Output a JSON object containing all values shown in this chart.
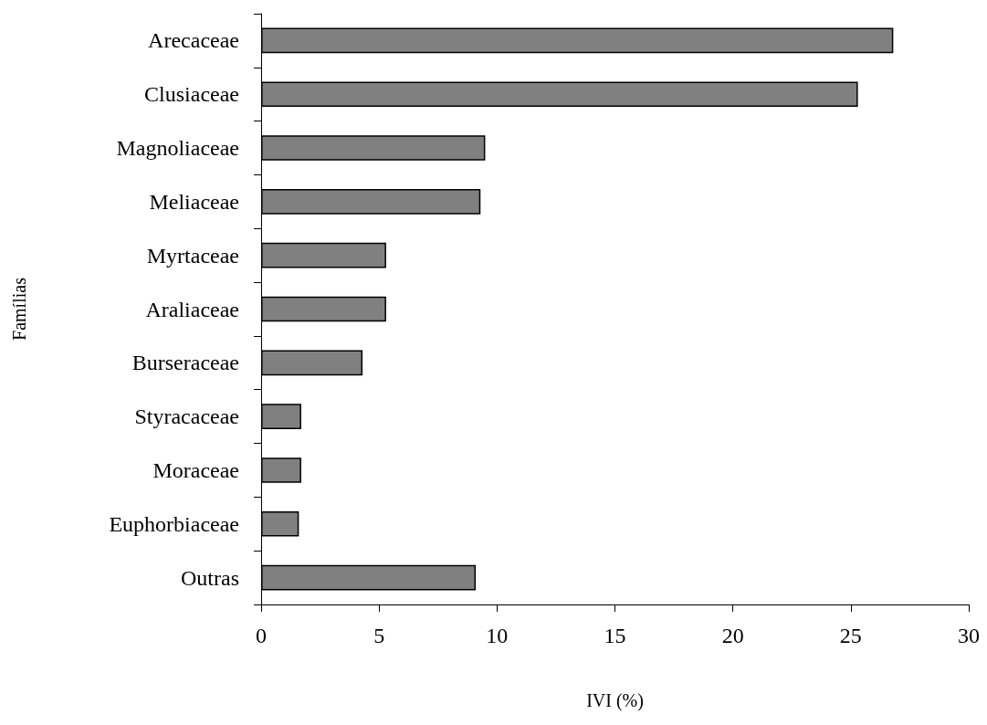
{
  "chart_data": {
    "type": "bar",
    "orientation": "horizontal",
    "xlabel": "IVI (%)",
    "ylabel": "Famílias",
    "categories": [
      "Arecaceae",
      "Clusiaceae",
      "Magnoliaceae",
      "Meliaceae",
      "Myrtaceae",
      "Araliaceae",
      "Burseraceae",
      "Styracaceae",
      "Moraceae",
      "Euphorbiaceae",
      "Outras"
    ],
    "values": [
      26.8,
      25.3,
      9.5,
      9.3,
      5.3,
      5.3,
      4.3,
      1.7,
      1.7,
      1.6,
      9.1
    ],
    "color": "#808080",
    "xlim": [
      0,
      30
    ],
    "xticks": [
      0,
      5,
      10,
      15,
      20,
      25,
      30
    ],
    "grid": false
  }
}
